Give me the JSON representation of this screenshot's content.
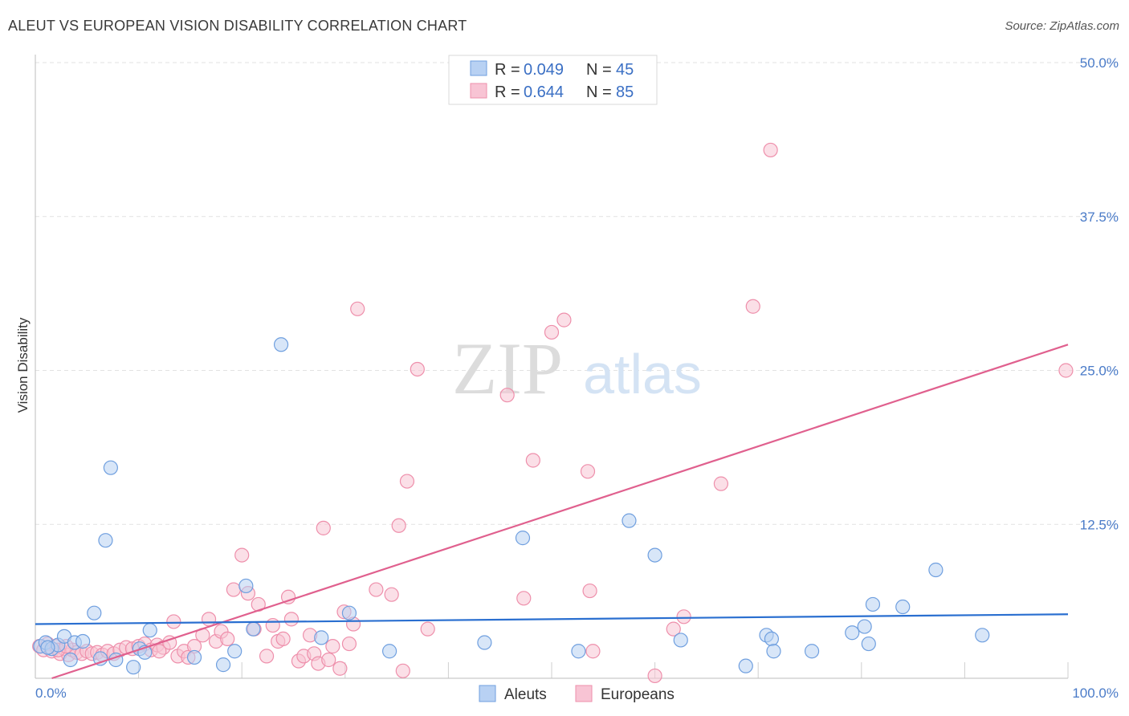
{
  "title": "ALEUT VS EUROPEAN VISION DISABILITY CORRELATION CHART",
  "source": "Source: ZipAtlas.com",
  "watermark": {
    "zip": "ZIP",
    "atlas": "atlas"
  },
  "colors": {
    "aleut_fill": "#b8d1f3",
    "aleut_stroke": "#6f9fdf",
    "aleut_line": "#2a6fd0",
    "european_fill": "#f8c4d4",
    "european_stroke": "#ee8fab",
    "european_line": "#e0608e",
    "tick_label": "#4a7bc8",
    "grid": "#e2e2e2"
  },
  "legend": {
    "r_label": "R =",
    "n_label": "N =",
    "rows": [
      {
        "series": "Aleuts",
        "r": "0.049",
        "n": "45"
      },
      {
        "series": "Europeans",
        "r": "0.644",
        "n": "85"
      }
    ]
  },
  "chart_data": {
    "type": "scatter",
    "title": "ALEUT VS EUROPEAN VISION DISABILITY CORRELATION CHART",
    "xlabel": "",
    "ylabel": "Vision Disability",
    "xlim": [
      0,
      100
    ],
    "ylim": [
      0,
      50
    ],
    "x_tick_labels": [
      "0.0%",
      "100.0%"
    ],
    "y_ticks": [
      12.5,
      25.0,
      37.5,
      50.0
    ],
    "y_tick_labels": [
      "12.5%",
      "25.0%",
      "37.5%",
      "50.0%"
    ],
    "grid": true,
    "legend_position": "bottom",
    "series": [
      {
        "name": "Aleuts",
        "r": 0.049,
        "n": 45,
        "trend": {
          "x": [
            0,
            100
          ],
          "y": [
            4.4,
            5.2
          ]
        },
        "points": [
          {
            "x": 0.5,
            "y": 2.6
          },
          {
            "x": 1.0,
            "y": 2.9
          },
          {
            "x": 1.6,
            "y": 2.4
          },
          {
            "x": 2.2,
            "y": 2.7
          },
          {
            "x": 2.8,
            "y": 3.4
          },
          {
            "x": 3.4,
            "y": 1.5
          },
          {
            "x": 3.8,
            "y": 2.9
          },
          {
            "x": 4.6,
            "y": 3.0
          },
          {
            "x": 5.7,
            "y": 5.3
          },
          {
            "x": 6.3,
            "y": 1.6
          },
          {
            "x": 6.8,
            "y": 11.2
          },
          {
            "x": 7.3,
            "y": 17.1
          },
          {
            "x": 7.8,
            "y": 1.5
          },
          {
            "x": 9.5,
            "y": 0.9
          },
          {
            "x": 10.1,
            "y": 2.4
          },
          {
            "x": 10.6,
            "y": 2.1
          },
          {
            "x": 11.1,
            "y": 3.9
          },
          {
            "x": 15.4,
            "y": 1.7
          },
          {
            "x": 18.2,
            "y": 1.1
          },
          {
            "x": 19.3,
            "y": 2.2
          },
          {
            "x": 20.4,
            "y": 7.5
          },
          {
            "x": 21.1,
            "y": 4.0
          },
          {
            "x": 23.8,
            "y": 27.1
          },
          {
            "x": 27.7,
            "y": 3.3
          },
          {
            "x": 30.4,
            "y": 5.3
          },
          {
            "x": 34.3,
            "y": 2.2
          },
          {
            "x": 43.5,
            "y": 2.9
          },
          {
            "x": 47.2,
            "y": 11.4
          },
          {
            "x": 52.6,
            "y": 2.2
          },
          {
            "x": 57.5,
            "y": 12.8
          },
          {
            "x": 60.0,
            "y": 10.0
          },
          {
            "x": 62.5,
            "y": 3.1
          },
          {
            "x": 68.8,
            "y": 1.0
          },
          {
            "x": 70.8,
            "y": 3.5
          },
          {
            "x": 71.3,
            "y": 3.2
          },
          {
            "x": 71.5,
            "y": 2.2
          },
          {
            "x": 75.2,
            "y": 2.2
          },
          {
            "x": 79.1,
            "y": 3.7
          },
          {
            "x": 80.3,
            "y": 4.2
          },
          {
            "x": 80.7,
            "y": 2.8
          },
          {
            "x": 81.1,
            "y": 6.0
          },
          {
            "x": 84.0,
            "y": 5.8
          },
          {
            "x": 87.2,
            "y": 8.8
          },
          {
            "x": 91.7,
            "y": 3.5
          },
          {
            "x": 1.2,
            "y": 2.5
          }
        ]
      },
      {
        "name": "Europeans",
        "r": 0.644,
        "n": 85,
        "trend": {
          "x": [
            1.6,
            100
          ],
          "y": [
            0,
            27.1
          ]
        },
        "points": [
          {
            "x": 0.4,
            "y": 2.6
          },
          {
            "x": 0.8,
            "y": 2.3
          },
          {
            "x": 1.2,
            "y": 2.8
          },
          {
            "x": 1.6,
            "y": 2.2
          },
          {
            "x": 2.0,
            "y": 2.6
          },
          {
            "x": 2.4,
            "y": 2.0
          },
          {
            "x": 2.8,
            "y": 2.4
          },
          {
            "x": 3.2,
            "y": 1.9
          },
          {
            "x": 3.6,
            "y": 2.3
          },
          {
            "x": 4.0,
            "y": 2.1
          },
          {
            "x": 4.5,
            "y": 2.0
          },
          {
            "x": 5.0,
            "y": 2.2
          },
          {
            "x": 5.5,
            "y": 2.0
          },
          {
            "x": 6.0,
            "y": 2.1
          },
          {
            "x": 6.5,
            "y": 1.9
          },
          {
            "x": 7.0,
            "y": 2.2
          },
          {
            "x": 7.6,
            "y": 2.0
          },
          {
            "x": 8.2,
            "y": 2.3
          },
          {
            "x": 8.8,
            "y": 2.5
          },
          {
            "x": 9.4,
            "y": 2.4
          },
          {
            "x": 10.0,
            "y": 2.6
          },
          {
            "x": 10.6,
            "y": 2.8
          },
          {
            "x": 11.2,
            "y": 2.3
          },
          {
            "x": 11.8,
            "y": 2.7
          },
          {
            "x": 12.4,
            "y": 2.5
          },
          {
            "x": 13.0,
            "y": 2.9
          },
          {
            "x": 13.4,
            "y": 4.6
          },
          {
            "x": 13.8,
            "y": 1.8
          },
          {
            "x": 14.4,
            "y": 2.2
          },
          {
            "x": 14.8,
            "y": 1.7
          },
          {
            "x": 15.4,
            "y": 2.6
          },
          {
            "x": 16.2,
            "y": 3.5
          },
          {
            "x": 16.8,
            "y": 4.8
          },
          {
            "x": 17.5,
            "y": 3.0
          },
          {
            "x": 18.0,
            "y": 3.8
          },
          {
            "x": 18.6,
            "y": 3.2
          },
          {
            "x": 19.2,
            "y": 7.2
          },
          {
            "x": 20.0,
            "y": 10.0
          },
          {
            "x": 20.6,
            "y": 6.9
          },
          {
            "x": 21.2,
            "y": 4.0
          },
          {
            "x": 21.6,
            "y": 6.0
          },
          {
            "x": 22.4,
            "y": 1.8
          },
          {
            "x": 23.0,
            "y": 4.3
          },
          {
            "x": 23.5,
            "y": 3.0
          },
          {
            "x": 24.0,
            "y": 3.2
          },
          {
            "x": 24.5,
            "y": 6.6
          },
          {
            "x": 24.8,
            "y": 4.8
          },
          {
            "x": 25.5,
            "y": 1.4
          },
          {
            "x": 26.0,
            "y": 1.8
          },
          {
            "x": 26.6,
            "y": 3.5
          },
          {
            "x": 27.0,
            "y": 2.0
          },
          {
            "x": 27.4,
            "y": 1.2
          },
          {
            "x": 27.9,
            "y": 12.2
          },
          {
            "x": 28.4,
            "y": 1.5
          },
          {
            "x": 28.8,
            "y": 2.6
          },
          {
            "x": 29.5,
            "y": 0.8
          },
          {
            "x": 29.9,
            "y": 5.4
          },
          {
            "x": 30.4,
            "y": 2.8
          },
          {
            "x": 30.8,
            "y": 4.4
          },
          {
            "x": 31.2,
            "y": 30.0
          },
          {
            "x": 33.0,
            "y": 7.2
          },
          {
            "x": 34.5,
            "y": 6.8
          },
          {
            "x": 35.6,
            "y": 0.6
          },
          {
            "x": 35.2,
            "y": 12.4
          },
          {
            "x": 36.0,
            "y": 16.0
          },
          {
            "x": 37.0,
            "y": 25.1
          },
          {
            "x": 38.0,
            "y": 4.0
          },
          {
            "x": 45.7,
            "y": 23.0
          },
          {
            "x": 47.3,
            "y": 6.5
          },
          {
            "x": 48.2,
            "y": 17.7
          },
          {
            "x": 50.0,
            "y": 28.1
          },
          {
            "x": 51.2,
            "y": 29.1
          },
          {
            "x": 53.5,
            "y": 16.8
          },
          {
            "x": 53.7,
            "y": 7.1
          },
          {
            "x": 54.0,
            "y": 2.2
          },
          {
            "x": 60.0,
            "y": 0.2
          },
          {
            "x": 61.8,
            "y": 4.0
          },
          {
            "x": 62.8,
            "y": 5.0
          },
          {
            "x": 66.4,
            "y": 15.8
          },
          {
            "x": 69.5,
            "y": 30.2
          },
          {
            "x": 71.2,
            "y": 42.9
          },
          {
            "x": 99.8,
            "y": 25.0
          },
          {
            "x": 2.2,
            "y": 2.3
          },
          {
            "x": 3.0,
            "y": 2.6
          },
          {
            "x": 12.0,
            "y": 2.2
          }
        ]
      }
    ]
  }
}
